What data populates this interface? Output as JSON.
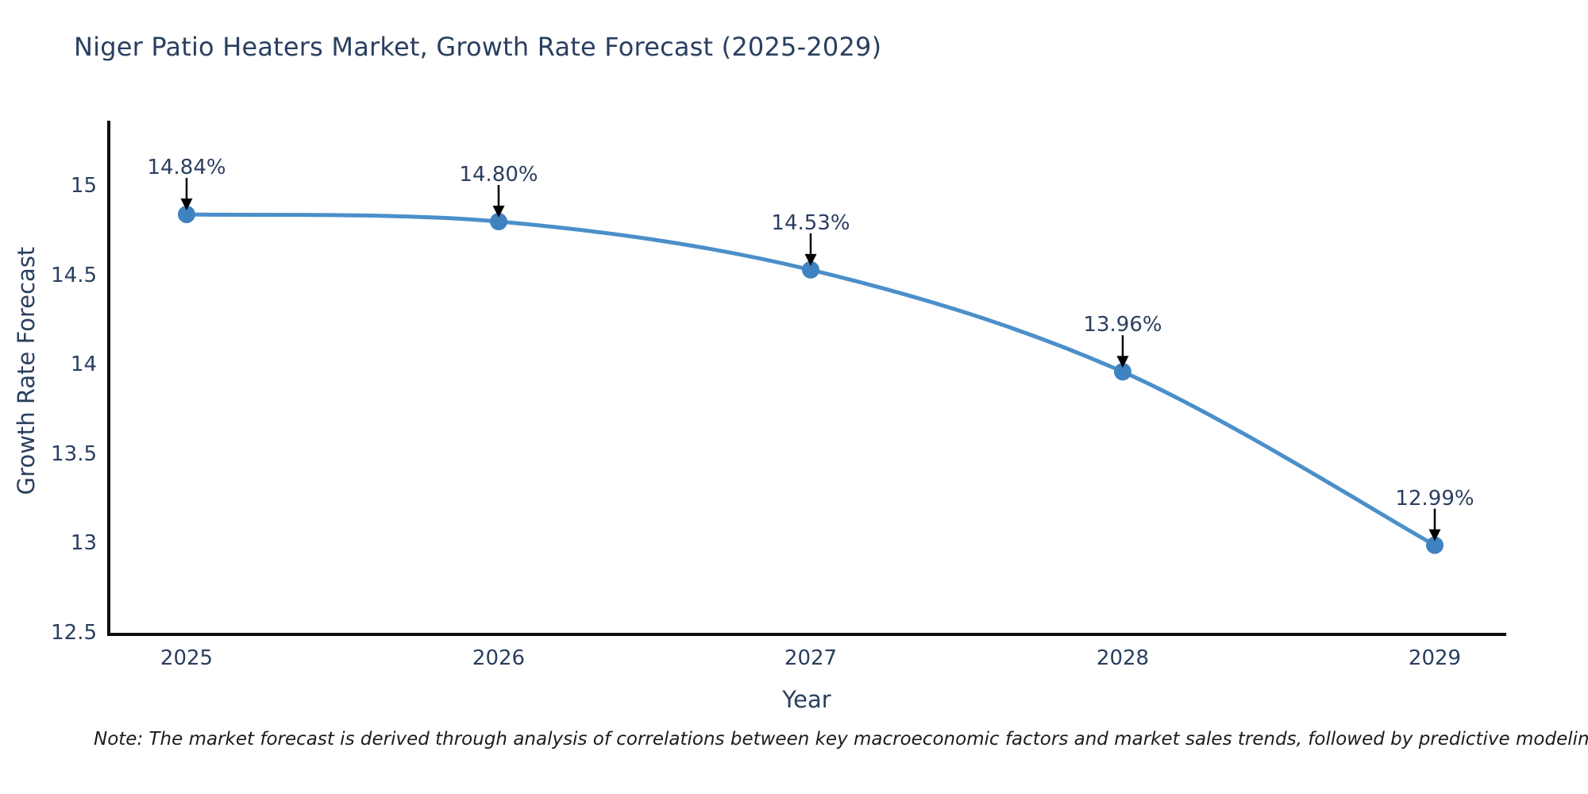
{
  "chart_data": {
    "type": "line",
    "title": "Niger Patio Heaters Market, Growth Rate Forecast (2025-2029)",
    "xlabel": "Year",
    "ylabel": "Growth Rate Forecast",
    "x": [
      2025,
      2026,
      2027,
      2028,
      2029
    ],
    "x_tick_labels": [
      "2025",
      "2026",
      "2027",
      "2028",
      "2029"
    ],
    "y": [
      14.84,
      14.8,
      14.53,
      13.96,
      12.99
    ],
    "point_labels": [
      "14.84%",
      "14.80%",
      "14.53%",
      "13.96%",
      "12.99%"
    ],
    "y_tick_labels": [
      "15",
      "14.5",
      "14",
      "13.5",
      "13",
      "12.5"
    ],
    "y_tick_values": [
      15,
      14.5,
      14,
      13.5,
      13,
      12.5
    ],
    "ylim": [
      12.5,
      15.26
    ],
    "line_shape": "spline",
    "grid": false,
    "legend": "none",
    "colors": {
      "line": "#4b8fca",
      "marker": "#3f82c0",
      "axis": "#0d0d0d",
      "text": "#2a3f5f",
      "annotation_arrow": "#000000"
    }
  },
  "note": "Note: The market forecast is derived through analysis of correlations between key macroeconomic factors and market sales trends, followed by predictive modeling to project future sal"
}
